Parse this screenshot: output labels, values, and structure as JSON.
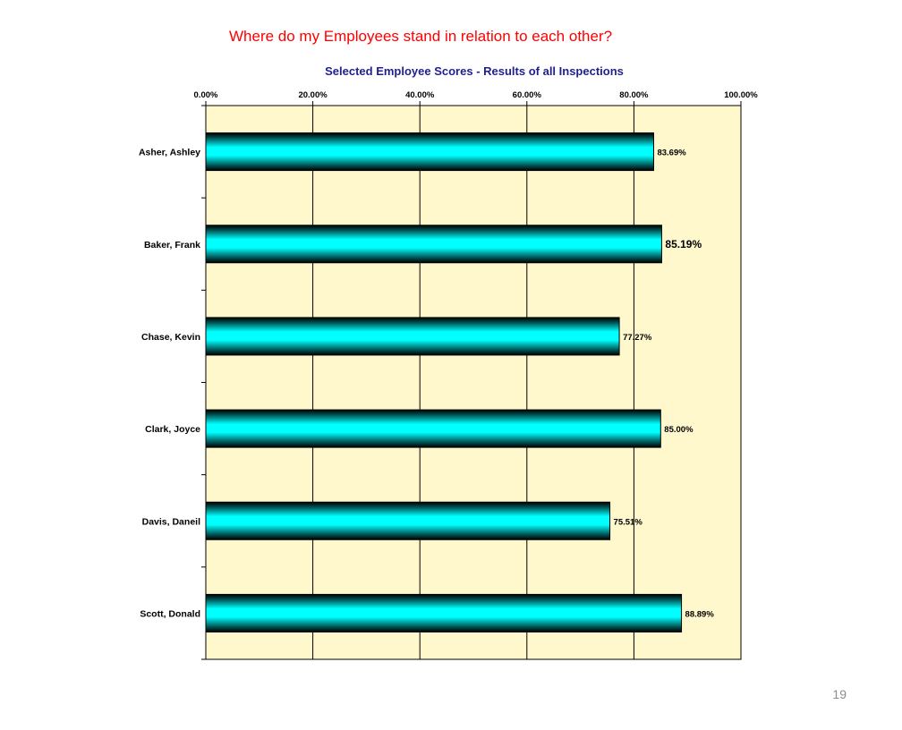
{
  "slide": {
    "title": "Where do my Employees stand in relation to each other?",
    "page_number": "19"
  },
  "colors": {
    "title": "#ff0000",
    "chart_title": "#1f1f8f",
    "plot_background": "#fff8cc",
    "bar_fill": "#00ffff",
    "bar_dark": "#000000",
    "gridline": "#000000"
  },
  "chart_data": {
    "type": "bar",
    "orientation": "horizontal",
    "title": "Selected Employee Scores - Results of all Inspections",
    "categories": [
      "Asher, Ashley",
      "Baker, Frank",
      "Chase, Kevin",
      "Clark, Joyce",
      "Davis, Daneil",
      "Scott, Donald"
    ],
    "values": [
      83.69,
      85.19,
      77.27,
      85.0,
      75.51,
      88.89
    ],
    "data_labels": [
      "83.69%",
      "85.19%",
      "77.27%",
      "85.00%",
      "75.51%",
      "88.89%"
    ],
    "xlim": [
      0,
      100
    ],
    "xticks": [
      0,
      20,
      40,
      60,
      80,
      100
    ],
    "xtick_labels": [
      "0.00%",
      "20.00%",
      "40.00%",
      "60.00%",
      "80.00%",
      "100.00%"
    ],
    "xaxis_position": "top",
    "grid": true,
    "legend": false
  }
}
